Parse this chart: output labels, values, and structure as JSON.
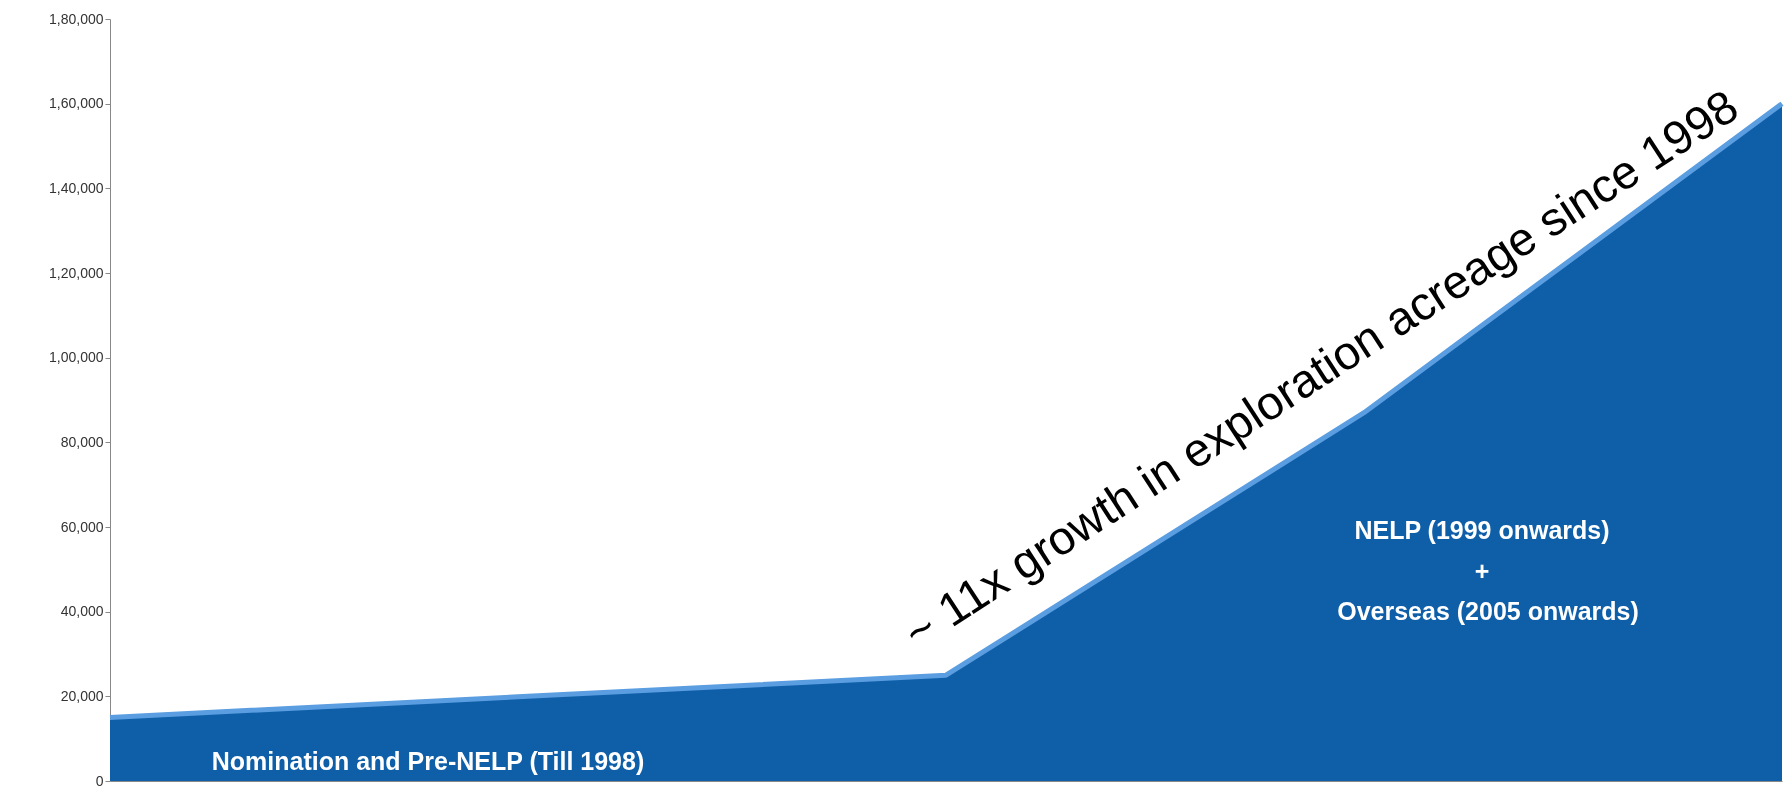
{
  "chart_data": {
    "type": "area",
    "categories": [
      null,
      null,
      null,
      null,
      null
    ],
    "series": [
      {
        "color": "#0e5ea8",
        "values": [
          15000,
          20000,
          25000,
          87000,
          160000
        ]
      }
    ],
    "ylim": [
      0,
      180000
    ],
    "yticks": [
      {
        "value": 0,
        "label": "0"
      },
      {
        "value": 20000,
        "label": "20,000"
      },
      {
        "value": 40000,
        "label": "40,000"
      },
      {
        "value": 60000,
        "label": "60,000"
      },
      {
        "value": 80000,
        "label": "80,000"
      },
      {
        "value": 100000,
        "label": "1,00,000"
      },
      {
        "value": 120000,
        "label": "1,20,000"
      },
      {
        "value": 140000,
        "label": "1,40,000"
      },
      {
        "value": 160000,
        "label": "1,60,000"
      },
      {
        "value": 180000,
        "label": "1,80,000"
      }
    ],
    "grid": false,
    "tick_labels": "y",
    "annotations": [
      "~ 11x growth in exploration acreage since 1998",
      "NELP (1999 onwards)",
      "+",
      "Overseas (2005 onwards)",
      "Nomination and Pre-NELP (Till 1998)"
    ]
  }
}
